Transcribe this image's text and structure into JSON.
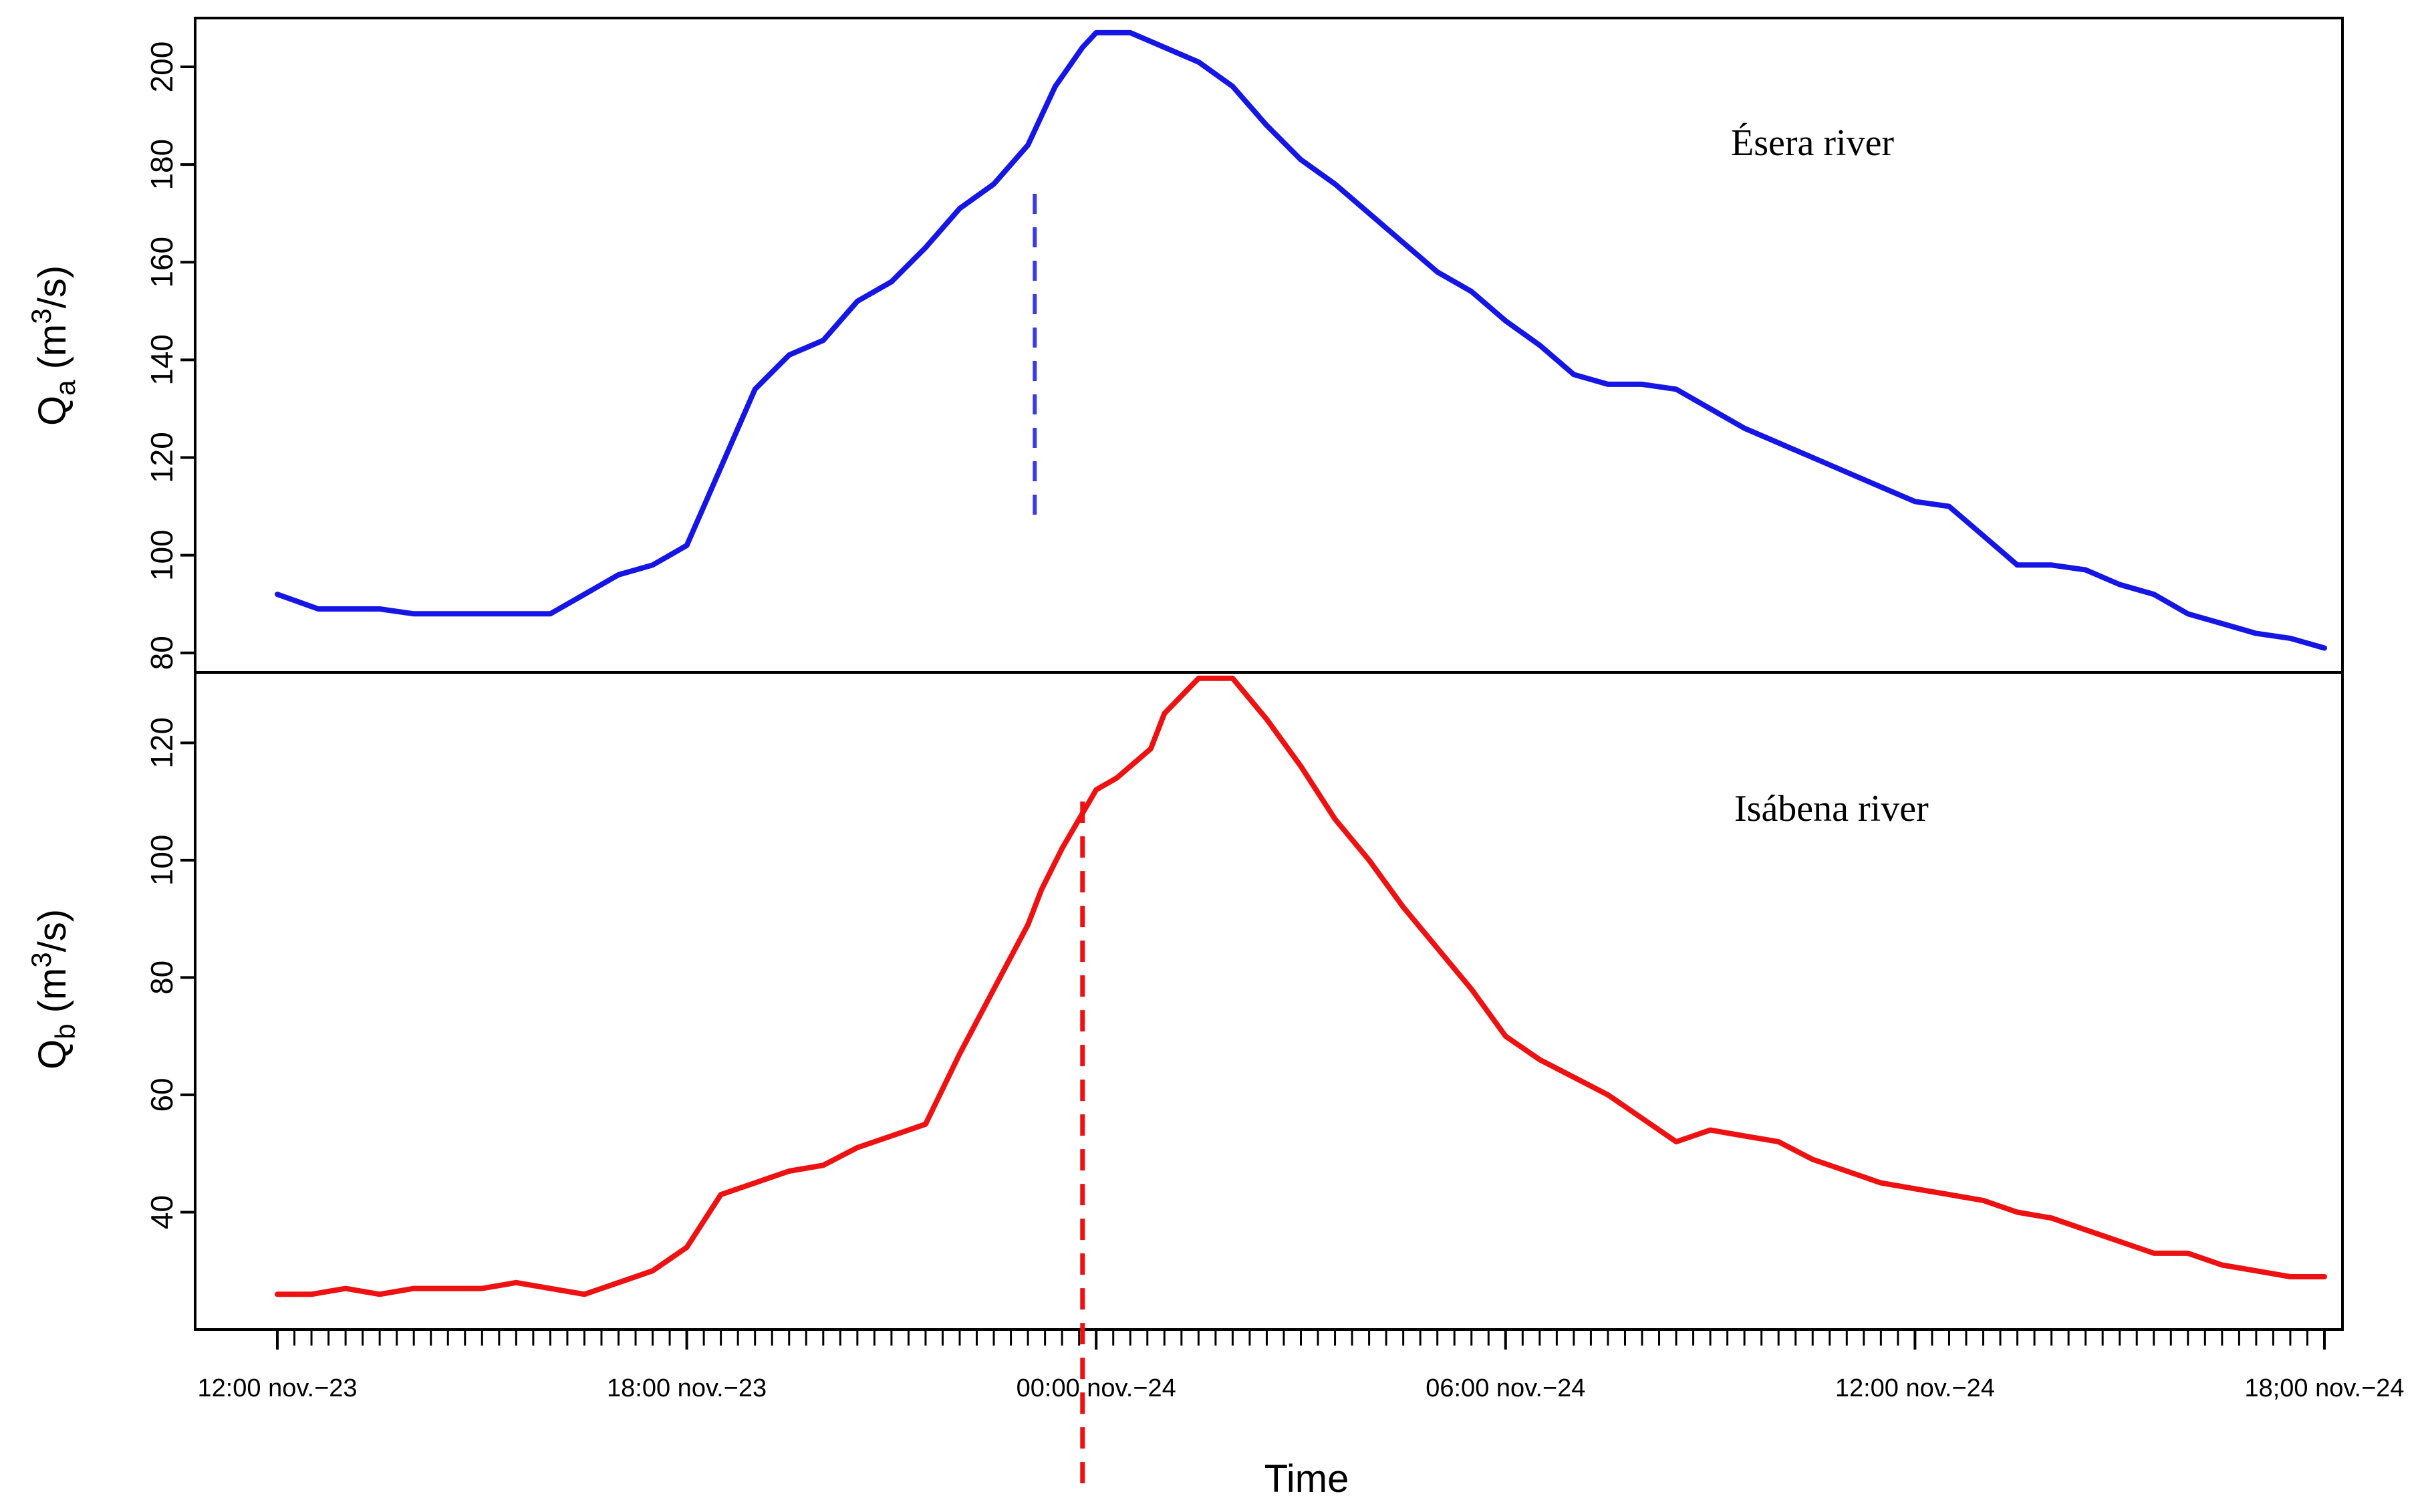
{
  "chart_data": {
    "type": "line",
    "xlabel": "Time",
    "x_unit": "hours since 12:00 nov.-23",
    "xlim": [
      0,
      30
    ],
    "x_ticks": [
      {
        "x": 0,
        "label": "12:00 nov.−23"
      },
      {
        "x": 6,
        "label": "18:00 nov.−23"
      },
      {
        "x": 12,
        "label": "00:00 nov.−24"
      },
      {
        "x": 18,
        "label": "06:00 nov.−24"
      },
      {
        "x": 24,
        "label": "12:00 nov.−24"
      },
      {
        "x": 30,
        "label": "18;00 nov.−24"
      }
    ],
    "minor_tick_step_hours": 0.25,
    "panels": [
      {
        "id": "esera",
        "annotation": "Ésera river",
        "ylabel_main": "Q",
        "ylabel_sub": "a",
        "ylabel_unit_open": " (m",
        "ylabel_unit_sup": "3",
        "ylabel_unit_close": "/s)",
        "ylim": [
          76,
          210
        ],
        "y_ticks": [
          80,
          100,
          120,
          140,
          160,
          180,
          200
        ],
        "color": "#1515e6",
        "peak_marker": {
          "x": 11.1,
          "y_top": 174,
          "y_bottom": 108,
          "color": "#3a3ae6"
        },
        "series": {
          "name": "Qa",
          "x": [
            0,
            0.6,
            1,
            1.5,
            2,
            2.3,
            3,
            3.5,
            4,
            4.5,
            5,
            5.5,
            6,
            6.5,
            7,
            7.5,
            8,
            8.5,
            9,
            9.5,
            10,
            10.5,
            11,
            11.2,
            11.4,
            11.6,
            11.8,
            12,
            12.5,
            13,
            13.5,
            14,
            14.5,
            15,
            15.5,
            16,
            16.5,
            17,
            17.5,
            18,
            18.5,
            19,
            19.5,
            20,
            20.5,
            21,
            21.5,
            22,
            22.5,
            23,
            23.5,
            24,
            24.5,
            25,
            25.5,
            26,
            26.5,
            27,
            27.5,
            28,
            28.5,
            29,
            29.5,
            30
          ],
          "y": [
            92,
            89,
            89,
            89,
            88,
            88,
            88,
            88,
            88,
            92,
            96,
            98,
            102,
            118,
            134,
            141,
            144,
            152,
            156,
            163,
            171,
            176,
            184,
            190,
            196,
            200,
            204,
            207,
            207,
            204,
            201,
            196,
            188,
            181,
            176,
            170,
            164,
            158,
            154,
            148,
            143,
            137,
            135,
            135,
            134,
            130,
            126,
            123,
            120,
            117,
            114,
            111,
            110,
            104,
            98,
            98,
            97,
            94,
            92,
            88,
            86,
            84,
            83,
            81
          ]
        }
      },
      {
        "id": "isabena",
        "annotation": "Isábena river",
        "ylabel_main": "Q",
        "ylabel_sub": "b",
        "ylabel_unit_open": " (m",
        "ylabel_unit_sup": "3",
        "ylabel_unit_close": "/s)",
        "ylim": [
          20,
          132
        ],
        "y_ticks": [
          40,
          60,
          80,
          100,
          120
        ],
        "color": "#ee1111",
        "peak_marker": {
          "x": 11.8,
          "y_top": 110,
          "y_bottom": -8,
          "color": "#ee1111"
        },
        "series": {
          "name": "Qb",
          "x": [
            0,
            0.5,
            1,
            1.5,
            2,
            2.5,
            3,
            3.5,
            4,
            4.5,
            5,
            5.5,
            6,
            6.5,
            7,
            7.5,
            8,
            8.5,
            9,
            9.5,
            10,
            10.5,
            11,
            11.2,
            11.5,
            11.8,
            12,
            12.3,
            12.6,
            12.8,
            13,
            13.5,
            14,
            14.5,
            15,
            15.5,
            16,
            16.5,
            17,
            17.5,
            18,
            18.5,
            19,
            19.5,
            20,
            20.5,
            21,
            21.5,
            22,
            22.5,
            23,
            23.5,
            24,
            24.5,
            25,
            25.5,
            26,
            26.5,
            27,
            27.5,
            28,
            28.5,
            29,
            29.5,
            30
          ],
          "y": [
            26,
            26,
            27,
            26,
            27,
            27,
            27,
            28,
            27,
            26,
            28,
            30,
            34,
            43,
            45,
            47,
            48,
            51,
            53,
            55,
            67,
            78,
            89,
            95,
            102,
            108,
            112,
            114,
            117,
            119,
            125,
            131,
            131,
            124,
            116,
            107,
            100,
            92,
            85,
            78,
            70,
            66,
            63,
            60,
            56,
            52,
            54,
            53,
            52,
            49,
            47,
            45,
            44,
            43,
            42,
            40,
            39,
            37,
            35,
            33,
            33,
            31,
            30,
            29,
            29
          ]
        }
      }
    ]
  }
}
